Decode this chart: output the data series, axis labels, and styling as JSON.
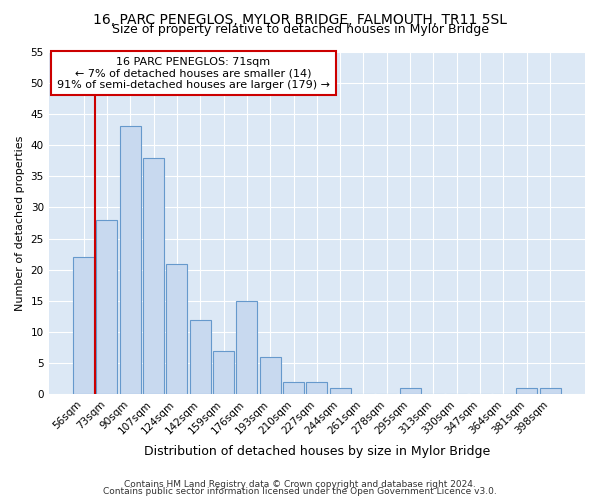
{
  "title1": "16, PARC PENEGLOS, MYLOR BRIDGE, FALMOUTH, TR11 5SL",
  "title2": "Size of property relative to detached houses in Mylor Bridge",
  "xlabel": "Distribution of detached houses by size in Mylor Bridge",
  "ylabel": "Number of detached properties",
  "categories": [
    "56sqm",
    "73sqm",
    "90sqm",
    "107sqm",
    "124sqm",
    "142sqm",
    "159sqm",
    "176sqm",
    "193sqm",
    "210sqm",
    "227sqm",
    "244sqm",
    "261sqm",
    "278sqm",
    "295sqm",
    "313sqm",
    "330sqm",
    "347sqm",
    "364sqm",
    "381sqm",
    "398sqm"
  ],
  "values": [
    22,
    28,
    43,
    38,
    21,
    12,
    7,
    15,
    6,
    2,
    2,
    1,
    0,
    0,
    1,
    0,
    0,
    0,
    0,
    1,
    1
  ],
  "bar_color": "#c8d9ef",
  "bar_edge_color": "#6699cc",
  "redline_color": "#cc0000",
  "redline_x": 0.5,
  "annotation_title": "16 PARC PENEGLOS: 71sqm",
  "annotation_line1": "← 7% of detached houses are smaller (14)",
  "annotation_line2": "91% of semi-detached houses are larger (179) →",
  "annotation_box_facecolor": "#ffffff",
  "annotation_box_edgecolor": "#cc0000",
  "ylim": [
    0,
    55
  ],
  "yticks": [
    0,
    5,
    10,
    15,
    20,
    25,
    30,
    35,
    40,
    45,
    50,
    55
  ],
  "fig_bg_color": "#ffffff",
  "plot_bg_color": "#dce8f5",
  "grid_color": "#ffffff",
  "title1_fontsize": 10,
  "title2_fontsize": 9,
  "xlabel_fontsize": 9,
  "ylabel_fontsize": 8,
  "tick_fontsize": 7.5,
  "annotation_fontsize": 8,
  "footer_fontsize": 6.5,
  "footer1": "Contains HM Land Registry data © Crown copyright and database right 2024.",
  "footer2": "Contains public sector information licensed under the Open Government Licence v3.0."
}
